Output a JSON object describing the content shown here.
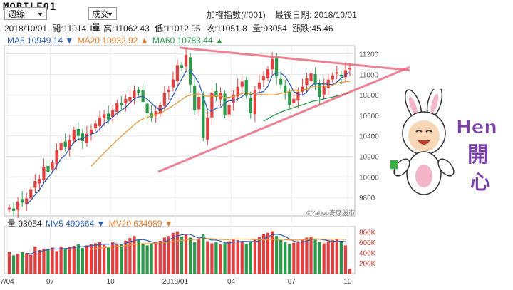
{
  "watermark": "MOBILE01",
  "controls": {
    "period": "週線",
    "indicator": "成交量"
  },
  "header": {
    "title": "加權指數(#001)",
    "last_date": "最後日期: 2018/10/01"
  },
  "quote": {
    "date": "2018/10/01",
    "open": "開:11014.19",
    "high": "高:11062.43",
    "low": "低:11012.95",
    "close": "收:11051.8",
    "volume": "量:93054",
    "change": "漲跌:45.46"
  },
  "ma_legend": {
    "ma5": "MA5 10949.14 ▼",
    "ma20": "MA20 10932.92 ▲",
    "ma60": "MA60 10783.44 ▲"
  },
  "vol_legend": {
    "vol": "量 93054",
    "mv5": "MV5 490664 ▼",
    "mv20": "MV20 634989 ▼"
  },
  "credit": "©Yahoo奇摩股市",
  "sticker_text": "Hen 開 心",
  "colors": {
    "up": "#e04040",
    "down": "#2a9a4a",
    "ma5": "#2e5fb5",
    "ma20": "#e39a3a",
    "ma60": "#2a9a4a",
    "trend": "#e8657a"
  },
  "chart_data": [
    {
      "type": "candlestick",
      "title": "加權指數(#001)",
      "x_ticks": [
        "7/04",
        "07",
        "10",
        "2018/01",
        "04",
        "07",
        "10"
      ],
      "y_ticks": [
        9800,
        10000,
        10200,
        10400,
        10600,
        10800,
        11000,
        11200
      ],
      "ylim": [
        9620,
        11280
      ],
      "grid": true,
      "close_series": [
        9700,
        9670,
        9760,
        9750,
        9790,
        9880,
        9960,
        9980,
        10100,
        10050,
        10140,
        10260,
        10330,
        10290,
        10360,
        10460,
        10400,
        10350,
        10420,
        10460,
        10520,
        10580,
        10610,
        10560,
        10650,
        10720,
        10700,
        10760,
        10780,
        10840,
        10820,
        10730,
        10620,
        10580,
        10640,
        10700,
        10820,
        10850,
        10950,
        11090,
        11060,
        11190,
        10900,
        10650,
        10780,
        10380,
        10580,
        10820,
        10780,
        10820,
        10600,
        10700,
        10800,
        10880,
        10930,
        10790,
        10620,
        10850,
        10920,
        10980,
        11050,
        11150,
        10980,
        10900,
        10820,
        10700,
        10760,
        10830,
        10880,
        10960,
        11010,
        10900,
        10780,
        10880,
        10950,
        10990,
        11020,
        10980,
        11040,
        11060
      ],
      "annotations": [
        "symmetrical triangle trendlines"
      ]
    },
    {
      "type": "bar",
      "title": "量",
      "y_ticks": [
        "200K",
        "400K",
        "600K",
        "800K"
      ],
      "ylim": [
        0,
        900000
      ],
      "series": [
        {
          "name": "量",
          "values": [
            420000,
            350000,
            380000,
            410000,
            390000,
            360000,
            520000,
            450000,
            480000,
            470000,
            500000,
            430000,
            520000,
            480000,
            510000,
            530000,
            560000,
            490000,
            540000,
            560000,
            580000,
            600000,
            550000,
            520000,
            610000,
            570000,
            560000,
            630000,
            680000,
            720000,
            650000,
            580000,
            540000,
            560000,
            610000,
            630000,
            690000,
            720000,
            780000,
            810000,
            700000,
            760000,
            690000,
            600000,
            650000,
            760000,
            620000,
            580000,
            600000,
            560000,
            580000,
            620000,
            650000,
            640000,
            600000,
            570000,
            620000,
            660000,
            700000,
            760000,
            780000,
            810000,
            720000,
            640000,
            600000,
            560000,
            590000,
            620000,
            650000,
            690000,
            710000,
            650000,
            600000,
            580000,
            620000,
            640000,
            660000,
            600000,
            540000,
            93054
          ]
        },
        {
          "name": "MV5",
          "values": []
        },
        {
          "name": "MV20",
          "values": []
        }
      ]
    }
  ]
}
